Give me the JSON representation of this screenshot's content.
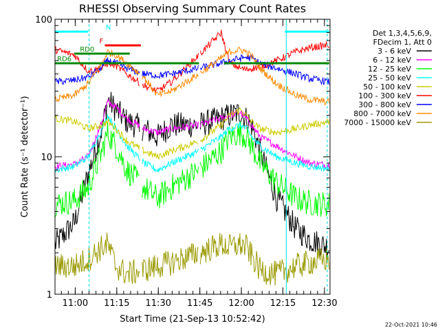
{
  "chart_data": {
    "type": "line",
    "title": "RHESSI Observing Summary Count Rates",
    "xlabel": "Start Time (21-Sep-13 10:52:42)",
    "ylabel": "Count Rate (s⁻¹ detector⁻¹)",
    "yscale": "log",
    "ylim": [
      1,
      100
    ],
    "y_ticks": [
      "1",
      "10",
      "100"
    ],
    "x_range": [
      "10:52:42",
      "12:32:00"
    ],
    "x_ticks": [
      "11:00",
      "11:15",
      "11:30",
      "11:45",
      "12:00",
      "12:15",
      "12:30"
    ],
    "grid": false,
    "legend_placement": "right",
    "legend_header": [
      "Det 1,3,4,5,6,9,",
      "FDecim 1, Att 0"
    ],
    "x_unit": "minutes after 10:52:42",
    "series": [
      {
        "name": "3 - 6 keV",
        "color": "#000000",
        "x": [
          0,
          7,
          12,
          17,
          19,
          22,
          26,
          32,
          37,
          42,
          52,
          60,
          63,
          67,
          69,
          71,
          74,
          80,
          87,
          92,
          99
        ],
        "y": [
          2.3,
          3.3,
          7.5,
          16,
          26,
          22,
          18,
          16,
          14,
          17,
          17,
          19,
          20,
          21,
          19,
          17,
          11,
          5,
          3,
          2.5,
          2.2
        ]
      },
      {
        "name": "6 - 12 keV",
        "color": "#ff00ff",
        "x": [
          0,
          7,
          12,
          17,
          19,
          22,
          26,
          32,
          37,
          42,
          52,
          60,
          63,
          67,
          69,
          71,
          74,
          80,
          87,
          92,
          99
        ],
        "y": [
          8.5,
          8.8,
          10,
          18,
          25,
          23,
          19,
          16,
          15,
          16,
          17,
          19,
          20,
          21,
          19,
          17,
          14,
          12,
          10,
          9,
          8.7
        ]
      },
      {
        "name": "12 - 25 keV",
        "color": "#00ff00",
        "x": [
          0,
          7,
          12,
          17,
          19,
          22,
          26,
          32,
          37,
          42,
          52,
          60,
          63,
          67,
          69,
          71,
          74,
          80,
          87,
          92,
          99
        ],
        "y": [
          4.5,
          4.8,
          6,
          11,
          15,
          12,
          8,
          6,
          5,
          6,
          8,
          11,
          14,
          15,
          14,
          12,
          9,
          6.5,
          5,
          4.6,
          4.5
        ]
      },
      {
        "name": "25 - 50 keV",
        "color": "#00ffff",
        "x": [
          0,
          7,
          12,
          17,
          19,
          22,
          26,
          32,
          37,
          42,
          52,
          60,
          63,
          67,
          69,
          71,
          74,
          80,
          87,
          92,
          99
        ],
        "y": [
          8,
          8.5,
          10,
          16,
          20,
          16,
          12,
          9,
          8,
          9,
          11,
          14,
          16,
          17,
          16,
          14,
          12,
          10,
          9,
          8.5,
          8.2
        ]
      },
      {
        "name": "50 - 100 keV",
        "color": "#cccc00",
        "x": [
          0,
          7,
          12,
          17,
          19,
          22,
          26,
          32,
          37,
          42,
          52,
          60,
          63,
          67,
          69,
          71,
          74,
          80,
          87,
          92,
          99
        ],
        "y": [
          19,
          18,
          16,
          17,
          18,
          16,
          13,
          11,
          10,
          11,
          13,
          17,
          20,
          22,
          20,
          18,
          16,
          15,
          16,
          17,
          18
        ]
      },
      {
        "name": "100 - 300 keV",
        "color": "#ff0000",
        "x": [
          0,
          7,
          12,
          17,
          19,
          22,
          26,
          32,
          37,
          42,
          52,
          60,
          63,
          67,
          69,
          71,
          74,
          80,
          87,
          92,
          99
        ],
        "y": [
          60,
          55,
          42,
          44,
          48,
          46,
          40,
          33,
          30,
          35,
          55,
          80,
          48,
          44,
          43,
          44,
          45,
          50,
          58,
          62,
          65
        ]
      },
      {
        "name": "300 - 800 keV",
        "color": "#0000ff",
        "x": [
          0,
          7,
          12,
          17,
          19,
          22,
          26,
          32,
          37,
          42,
          52,
          60,
          63,
          67,
          69,
          71,
          74,
          80,
          87,
          92,
          99
        ],
        "y": [
          35,
          36,
          38,
          45,
          50,
          48,
          44,
          40,
          39,
          40,
          44,
          48,
          50,
          52,
          53,
          52,
          48,
          44,
          40,
          37,
          35
        ]
      },
      {
        "name": "800 - 7000 keV",
        "color": "#ff8800",
        "x": [
          0,
          7,
          12,
          17,
          19,
          22,
          26,
          32,
          37,
          42,
          52,
          60,
          63,
          67,
          69,
          71,
          74,
          80,
          87,
          92,
          99
        ],
        "y": [
          26,
          28,
          34,
          48,
          58,
          55,
          48,
          38,
          28,
          30,
          40,
          52,
          58,
          60,
          58,
          54,
          44,
          34,
          28,
          26,
          25
        ]
      },
      {
        "name": "7000 - 15000 keV",
        "color": "#999900",
        "x": [
          0,
          7,
          12,
          17,
          19,
          22,
          26,
          32,
          37,
          42,
          52,
          60,
          63,
          67,
          69,
          71,
          74,
          80,
          87,
          92,
          99
        ],
        "y": [
          1.6,
          1.6,
          1.8,
          2.2,
          2.3,
          1.6,
          1.4,
          1.5,
          1.6,
          1.7,
          2.0,
          2.3,
          2.2,
          2.3,
          2.2,
          1.9,
          1.5,
          1.4,
          1.6,
          1.7,
          1.8
        ]
      }
    ],
    "vlines": [
      {
        "x": 12.3,
        "style": "dashed"
      },
      {
        "x": 83.5,
        "style": "solid"
      },
      {
        "x": 98.3,
        "style": "dashed"
      }
    ],
    "flag_bars": [
      {
        "label": "N",
        "color": "#00ffff",
        "y_level": 0.955,
        "segments": [
          [
            0,
            12
          ],
          [
            83,
            99
          ]
        ]
      },
      {
        "label": "F",
        "color": "#ff0000",
        "y_level": 0.905,
        "segments": [
          [
            18,
            31
          ]
        ]
      },
      {
        "label": "RD0",
        "color": "#008800",
        "y_level": 0.875,
        "segments": [
          [
            7,
            27
          ]
        ]
      },
      {
        "label": "RD6",
        "color": "#008800",
        "y_level": 0.84,
        "segments": [
          [
            0,
            52
          ],
          [
            61,
            99
          ]
        ]
      }
    ]
  },
  "footer": {
    "date_stamp": "22-Oct-2021 10:46"
  }
}
